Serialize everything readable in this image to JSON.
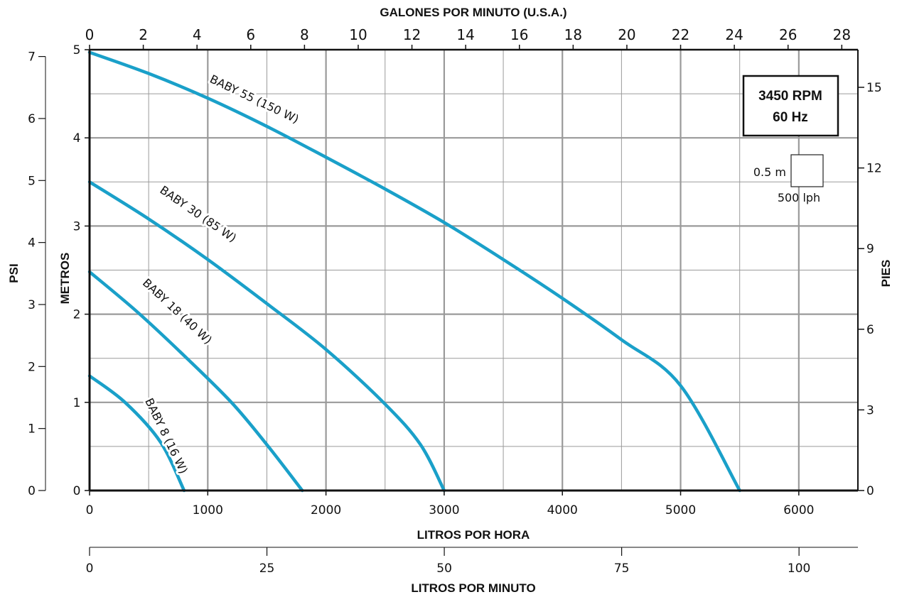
{
  "chart_data": {
    "type": "line",
    "x": {
      "label": "LITROS POR HORA",
      "range": [
        0,
        6500
      ],
      "ticks": [
        0,
        1000,
        2000,
        3000,
        4000,
        5000,
        6000
      ],
      "tick_labels": [
        "0",
        "1000",
        "2000",
        "3000",
        "4000",
        "5000",
        "6000"
      ]
    },
    "x_top": {
      "label": "GALONES POR MINUTO (U.S.A.)",
      "range": [
        0,
        28.6
      ],
      "ticks": [
        0,
        2,
        4,
        6,
        8,
        10,
        12,
        14,
        16,
        18,
        20,
        22,
        24,
        26,
        28
      ],
      "tick_labels": [
        "0",
        "2",
        "4",
        "6",
        "8",
        "10",
        "12",
        "14",
        "16",
        "18",
        "20",
        "22",
        "24",
        "26",
        "28"
      ]
    },
    "x_bottom2": {
      "label": "LITROS POR MINUTO",
      "range": [
        0,
        108.3
      ],
      "ticks": [
        0,
        25,
        50,
        75,
        100
      ],
      "tick_labels": [
        "0",
        "25",
        "50",
        "75",
        "100"
      ]
    },
    "y": {
      "label": "METROS",
      "range": [
        0,
        5
      ],
      "ticks": [
        0,
        1,
        2,
        3,
        4,
        5
      ],
      "tick_labels": [
        "0",
        "1",
        "2",
        "3",
        "4",
        "5"
      ]
    },
    "y_psi": {
      "label": "PSI",
      "range": [
        0,
        7.11
      ],
      "ticks": [
        0,
        1,
        2,
        3,
        4,
        5,
        6,
        7
      ],
      "tick_labels": [
        "0",
        "1",
        "2",
        "3",
        "4",
        "5",
        "6",
        "7"
      ]
    },
    "y_right": {
      "label": "PIES",
      "range": [
        0,
        16.4
      ],
      "ticks": [
        0,
        3,
        6,
        9,
        12,
        15
      ],
      "tick_labels": [
        "0",
        "3",
        "6",
        "9",
        "12",
        "15"
      ]
    },
    "grid": true,
    "series": [
      {
        "name": "BABY 55 (150 W)",
        "x": [
          0,
          500,
          1000,
          1500,
          2000,
          2500,
          3000,
          3500,
          4000,
          4500,
          5000,
          5500
        ],
        "y": [
          4.97,
          4.73,
          4.45,
          4.13,
          3.78,
          3.42,
          3.04,
          2.62,
          2.18,
          1.71,
          1.19,
          0.0
        ],
        "label_pos": [
          1380,
          4.4
        ]
      },
      {
        "name": "BABY 30 (85 W)",
        "x": [
          0,
          500,
          1000,
          1500,
          2000,
          2500,
          2800,
          3000
        ],
        "y": [
          3.5,
          3.08,
          2.62,
          2.12,
          1.6,
          0.98,
          0.52,
          0.0
        ],
        "label_pos": [
          900,
          3.1
        ]
      },
      {
        "name": "BABY 18 (40 W)",
        "x": [
          0,
          400,
          800,
          1200,
          1500,
          1800
        ],
        "y": [
          2.48,
          2.03,
          1.53,
          1.0,
          0.52,
          0.0
        ],
        "label_pos": [
          720,
          2.0
        ]
      },
      {
        "name": "BABY 8 (16 W)",
        "x": [
          0,
          300,
          600,
          800
        ],
        "y": [
          1.3,
          1.0,
          0.55,
          0.0
        ],
        "label_pos": [
          620,
          0.6
        ]
      }
    ],
    "annotations": {
      "rpm_lines": [
        "3450 RPM",
        "60 Hz"
      ],
      "scale_height": "0.5 m",
      "scale_width": "500 lph"
    },
    "colors": {
      "curve": "#1aa0c9",
      "grid": "#9a9a9a",
      "axis": "#111111"
    }
  }
}
